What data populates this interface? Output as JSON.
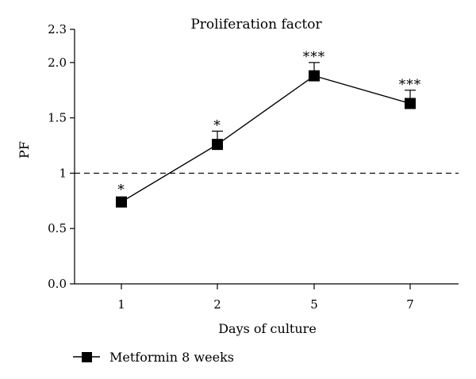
{
  "chart_data": {
    "type": "line",
    "title": "Proliferation factor",
    "xlabel": "Days of culture",
    "ylabel": "PF",
    "categories": [
      "1",
      "2",
      "5",
      "7"
    ],
    "y_ticks": [
      {
        "value": 0.0,
        "label": "0.0"
      },
      {
        "value": 0.5,
        "label": "0.5"
      },
      {
        "value": 1.0,
        "label": "1"
      },
      {
        "value": 1.5,
        "label": "1.5"
      },
      {
        "value": 2.0,
        "label": "2.0"
      },
      {
        "value": 2.3,
        "label": "2.3"
      }
    ],
    "ylim": [
      0,
      2.3
    ],
    "reference_line": {
      "value": 1.0,
      "style": "dashed"
    },
    "series": [
      {
        "name": "Metformin 8 weeks",
        "values": [
          0.74,
          1.26,
          1.88,
          1.63
        ],
        "error_upper": [
          0.0,
          0.12,
          0.12,
          0.12
        ],
        "significance": [
          "*",
          "*",
          "***",
          "***"
        ],
        "marker": "square",
        "color": "#000000"
      }
    ],
    "grid": false,
    "legend": "bottom-left"
  }
}
